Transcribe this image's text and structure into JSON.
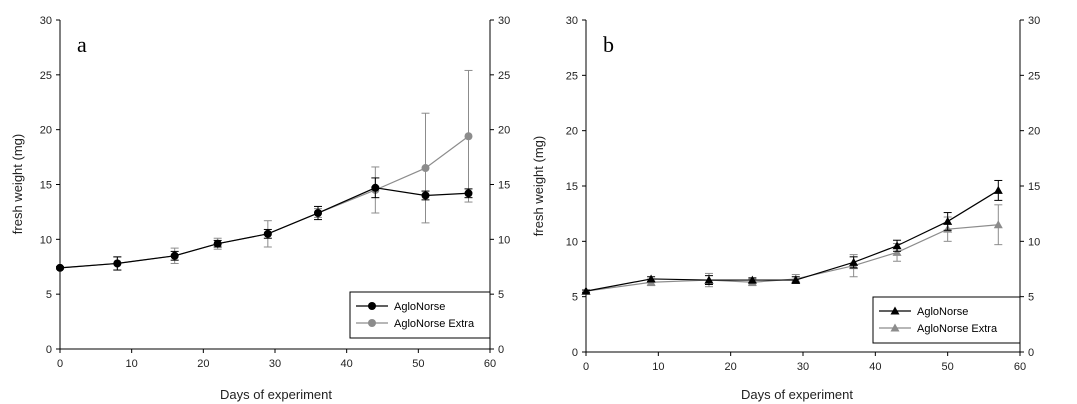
{
  "chart_data": [
    {
      "type": "line",
      "panel_label": "a",
      "xlabel": "Days of experiment",
      "ylabel": "fresh weight (mg)",
      "xlim": [
        0,
        60
      ],
      "ylim": [
        0,
        30
      ],
      "xticks": [
        "0",
        "10",
        "20",
        "30",
        "40",
        "50",
        "60"
      ],
      "yticks": [
        "0",
        "5",
        "10",
        "15",
        "20",
        "25",
        "30"
      ],
      "right_axis": true,
      "grid": false,
      "legend_position": "bottom-right",
      "marker": "circle",
      "series": [
        {
          "name": "AgloNorse",
          "color": "#000000",
          "x": [
            0,
            8,
            16,
            22,
            29,
            36,
            44,
            51,
            57
          ],
          "y": [
            7.4,
            7.8,
            8.5,
            9.6,
            10.5,
            12.4,
            14.7,
            14.0,
            14.2
          ],
          "err": [
            0.1,
            0.6,
            0.4,
            0.3,
            0.4,
            0.6,
            0.9,
            0.4,
            0.4
          ]
        },
        {
          "name": "AgloNorse Extra",
          "color": "#8c8c8c",
          "x": [
            0,
            8,
            16,
            22,
            29,
            36,
            44,
            51,
            57
          ],
          "y": [
            7.4,
            7.8,
            8.5,
            9.6,
            10.5,
            12.4,
            14.5,
            16.5,
            19.4
          ],
          "err": [
            0.1,
            0.6,
            0.7,
            0.5,
            1.2,
            0.4,
            2.1,
            5.0,
            6.0
          ]
        }
      ]
    },
    {
      "type": "line",
      "panel_label": "b",
      "xlabel": "Days of experiment",
      "ylabel": "fresh weight (mg)",
      "xlim": [
        0,
        60
      ],
      "ylim": [
        0,
        30
      ],
      "xticks": [
        "0",
        "10",
        "20",
        "30",
        "40",
        "50",
        "60"
      ],
      "yticks": [
        "0",
        "5",
        "10",
        "15",
        "20",
        "25",
        "30"
      ],
      "right_axis": true,
      "grid": false,
      "legend_position": "bottom-right",
      "marker": "triangle",
      "series": [
        {
          "name": "AgloNorse",
          "color": "#000000",
          "x": [
            0,
            9,
            17,
            23,
            29,
            37,
            43,
            50,
            57
          ],
          "y": [
            5.5,
            6.6,
            6.5,
            6.5,
            6.5,
            8.1,
            9.6,
            11.8,
            14.6
          ],
          "err": [
            0.1,
            0.2,
            0.4,
            0.2,
            0.3,
            0.5,
            0.5,
            0.8,
            0.9
          ]
        },
        {
          "name": "AgloNorse Extra",
          "color": "#8c8c8c",
          "x": [
            0,
            9,
            17,
            23,
            29,
            37,
            43,
            50,
            57
          ],
          "y": [
            5.5,
            6.3,
            6.5,
            6.3,
            6.6,
            7.8,
            9.0,
            11.1,
            11.5
          ],
          "err": [
            0.1,
            0.3,
            0.6,
            0.3,
            0.4,
            1.0,
            0.8,
            1.1,
            1.8
          ]
        }
      ]
    }
  ]
}
